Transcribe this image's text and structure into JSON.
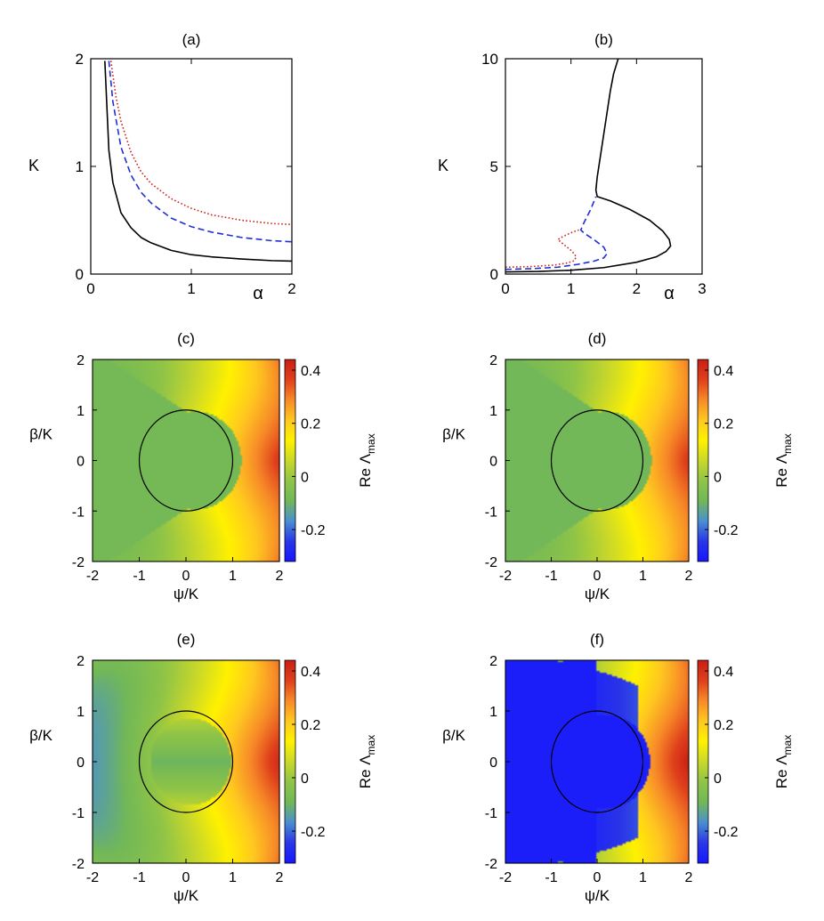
{
  "figure": {
    "colors": {
      "black": "#000000",
      "blue": "#1f2fd6",
      "red": "#c8281e",
      "colormap": [
        "#1616ff",
        "#2a36e8",
        "#4a8fd0",
        "#72b858",
        "#8fc447",
        "#c9d82a",
        "#fff200",
        "#ffc820",
        "#f78a28",
        "#e0401c",
        "#c81e14"
      ]
    }
  },
  "chart_data": [
    {
      "panel_label": "(a)",
      "type": "line",
      "xlabel": "α",
      "ylabel": "K",
      "xlim": [
        0,
        2
      ],
      "ylim": [
        0,
        2
      ],
      "xticks": [
        "0",
        "1",
        "2"
      ],
      "yticks": [
        "0",
        "1",
        "2"
      ],
      "grid": false,
      "series": [
        {
          "style": "solid",
          "color": "#000000",
          "x": [
            0.14,
            0.18,
            0.22,
            0.3,
            0.4,
            0.5,
            0.6,
            0.8,
            1.0,
            1.2,
            1.5,
            1.8,
            2.0
          ],
          "y": [
            1.98,
            1.15,
            0.85,
            0.57,
            0.43,
            0.34,
            0.29,
            0.22,
            0.18,
            0.16,
            0.14,
            0.125,
            0.12
          ]
        },
        {
          "style": "dashed",
          "color": "#1f2fd6",
          "x": [
            0.18,
            0.22,
            0.3,
            0.4,
            0.5,
            0.6,
            0.8,
            1.0,
            1.2,
            1.5,
            1.8,
            2.0
          ],
          "y": [
            1.98,
            1.6,
            1.18,
            0.92,
            0.76,
            0.66,
            0.52,
            0.44,
            0.39,
            0.34,
            0.31,
            0.3
          ]
        },
        {
          "style": "dotted",
          "color": "#c8281e",
          "x": [
            0.2,
            0.25,
            0.3,
            0.4,
            0.5,
            0.6,
            0.8,
            1.0,
            1.2,
            1.5,
            1.8,
            2.0
          ],
          "y": [
            1.98,
            1.65,
            1.42,
            1.13,
            0.95,
            0.84,
            0.7,
            0.61,
            0.55,
            0.5,
            0.47,
            0.46
          ]
        }
      ]
    },
    {
      "panel_label": "(b)",
      "type": "line",
      "xlabel": "α",
      "ylabel": "K",
      "xlim": [
        0,
        3
      ],
      "ylim": [
        0,
        10
      ],
      "xticks": [
        "0",
        "1",
        "2",
        "3"
      ],
      "yticks": [
        "0",
        "5",
        "10"
      ],
      "grid": false,
      "series": [
        {
          "style": "solid",
          "color": "#000000",
          "x": [
            0.0,
            0.5,
            1.0,
            1.5,
            2.0,
            2.3,
            2.45,
            2.52,
            2.5,
            2.4,
            2.2,
            1.9,
            1.6,
            1.4,
            1.38,
            1.4,
            1.45,
            1.5,
            1.55,
            1.6,
            1.65,
            1.7,
            1.72
          ],
          "y": [
            0.1,
            0.12,
            0.18,
            0.3,
            0.55,
            0.8,
            1.05,
            1.3,
            1.6,
            2.0,
            2.5,
            3.0,
            3.4,
            3.6,
            3.9,
            4.5,
            5.5,
            6.5,
            7.5,
            8.5,
            9.3,
            9.8,
            10.0
          ]
        },
        {
          "style": "dashed",
          "color": "#1f2fd6",
          "x": [
            0.0,
            0.4,
            0.8,
            1.1,
            1.35,
            1.5,
            1.55,
            1.5,
            1.35,
            1.2,
            1.15,
            1.2,
            1.3,
            1.38
          ],
          "y": [
            0.22,
            0.25,
            0.32,
            0.45,
            0.6,
            0.75,
            0.95,
            1.25,
            1.6,
            1.9,
            2.05,
            2.4,
            3.0,
            3.6
          ]
        },
        {
          "style": "dotted",
          "color": "#c8281e",
          "x": [
            0.0,
            0.4,
            0.75,
            0.95,
            1.05,
            1.08,
            1.02,
            0.9,
            0.82,
            0.8,
            0.85,
            0.95,
            1.05,
            1.12
          ],
          "y": [
            0.32,
            0.35,
            0.42,
            0.52,
            0.62,
            0.8,
            1.05,
            1.35,
            1.55,
            1.6,
            1.7,
            1.85,
            1.98,
            2.05
          ]
        }
      ]
    },
    {
      "panel_label": "(c)",
      "type": "heatmap",
      "xlabel": "ψ/K",
      "ylabel": "β/K",
      "colorbar_label": "Re Λ",
      "colorbar_label_sub": "max",
      "xlim": [
        -2,
        2
      ],
      "ylim": [
        -2,
        2
      ],
      "zlim": [
        -0.32,
        0.44
      ],
      "xticks": [
        "-2",
        "-1",
        "0",
        "1",
        "2"
      ],
      "yticks": [
        "-2",
        "-1",
        "0",
        "1",
        "2"
      ],
      "colorbar_ticks": [
        {
          "v": -0.2,
          "t": "-0.2"
        },
        {
          "v": 0,
          "t": "0"
        },
        {
          "v": 0.2,
          "t": "0.2"
        },
        {
          "v": 0.4,
          "t": "0.4"
        }
      ],
      "field": {
        "plateau": -0.085,
        "c0": 0.95,
        "c1": 0.2,
        "bowl": 0.0,
        "slope": 0.11
      },
      "overlay": "unit circle"
    },
    {
      "panel_label": "(d)",
      "type": "heatmap",
      "xlabel": "ψ/K",
      "ylabel": "β/K",
      "colorbar_label": "Re Λ",
      "colorbar_label_sub": "max",
      "xlim": [
        -2,
        2
      ],
      "ylim": [
        -2,
        2
      ],
      "zlim": [
        -0.32,
        0.44
      ],
      "xticks": [
        "-2",
        "-1",
        "0",
        "1",
        "2"
      ],
      "yticks": [
        "-2",
        "-1",
        "0",
        "1",
        "2"
      ],
      "colorbar_ticks": [
        {
          "v": -0.2,
          "t": "-0.2"
        },
        {
          "v": 0,
          "t": "0"
        },
        {
          "v": 0.2,
          "t": "0.2"
        },
        {
          "v": 0.4,
          "t": "0.4"
        }
      ],
      "field": {
        "plateau": -0.09,
        "c0": 0.95,
        "c1": 0.2,
        "bowl": 0.0,
        "slope": 0.11
      },
      "overlay": "unit circle"
    },
    {
      "panel_label": "(e)",
      "type": "heatmap",
      "xlabel": "ψ/K",
      "ylabel": "β/K",
      "colorbar_label": "Re Λ",
      "colorbar_label_sub": "max",
      "xlim": [
        -2,
        2
      ],
      "ylim": [
        -2,
        2
      ],
      "zlim": [
        -0.32,
        0.44
      ],
      "xticks": [
        "-2",
        "-1",
        "0",
        "1",
        "2"
      ],
      "yticks": [
        "-2",
        "-1",
        "0",
        "1",
        "2"
      ],
      "colorbar_ticks": [
        {
          "v": -0.2,
          "t": "-0.2"
        },
        {
          "v": 0,
          "t": "0"
        },
        {
          "v": 0.2,
          "t": "0.2"
        },
        {
          "v": 0.4,
          "t": "0.4"
        }
      ],
      "field": {
        "plateau": -0.1,
        "c0": 0.85,
        "c1": 0.12,
        "bowl": 0.18,
        "slope": 0.12,
        "betaCut": 1.15
      },
      "overlay": "unit circle"
    },
    {
      "panel_label": "(f)",
      "type": "heatmap",
      "xlabel": "ψ/K",
      "ylabel": "β/K",
      "colorbar_label": "Re Λ",
      "colorbar_label_sub": "max",
      "xlim": [
        -2,
        2
      ],
      "ylim": [
        -2,
        2
      ],
      "zlim": [
        -0.32,
        0.44
      ],
      "xticks": [
        "-2",
        "-1",
        "0",
        "1",
        "2"
      ],
      "yticks": [
        "-2",
        "-1",
        "0",
        "1",
        "2"
      ],
      "colorbar_ticks": [
        {
          "v": -0.2,
          "t": "-0.2"
        },
        {
          "v": 0,
          "t": "0"
        },
        {
          "v": 0.2,
          "t": "0.2"
        },
        {
          "v": 0.4,
          "t": "0.4"
        }
      ],
      "field": {
        "plateau": -0.3,
        "c0": 0.9,
        "c1": 0.22,
        "bowl": 0.0,
        "slope": 0.13
      },
      "overlay": "unit circle"
    }
  ]
}
